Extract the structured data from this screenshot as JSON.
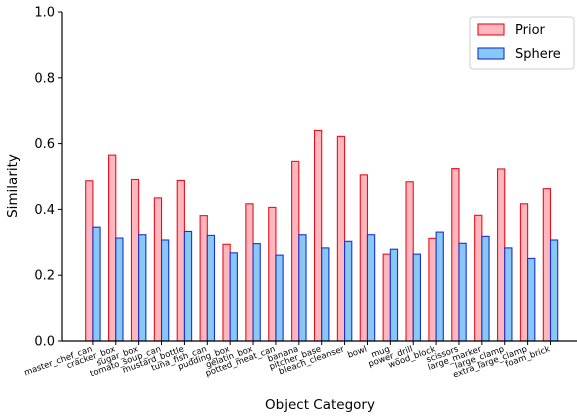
{
  "chart_data": {
    "type": "bar",
    "title": "",
    "xlabel": "Object Category",
    "ylabel": "Similarity",
    "ylim": [
      0.0,
      1.0
    ],
    "yticks": [
      "0.0",
      "0.2",
      "0.4",
      "0.6",
      "0.8",
      "1.0"
    ],
    "grid": false,
    "legend_position": "top-right",
    "categories": [
      "master_chef_can",
      "cracker_box",
      "sugar_box",
      "tomato_soup_can",
      "mustard_bottle",
      "tuna_fish_can",
      "pudding_box",
      "gelatin_box",
      "potted_meat_can",
      "banana",
      "pitcher_base",
      "bleach_cleanser",
      "bowl",
      "mug",
      "power_drill",
      "wood_block",
      "scissors",
      "large_marker",
      "large_clamp",
      "extra_large_clamp",
      "foam_brick"
    ],
    "series": [
      {
        "name": "Prior",
        "fill": "#ffb6bd",
        "edge": "#e8101e",
        "values": [
          0.487,
          0.565,
          0.491,
          0.435,
          0.488,
          0.381,
          0.294,
          0.417,
          0.406,
          0.546,
          0.64,
          0.622,
          0.505,
          0.264,
          0.484,
          0.312,
          0.524,
          0.382,
          0.523,
          0.417,
          0.463
        ]
      },
      {
        "name": "Sphere",
        "fill": "#88c8f4",
        "edge": "#1a2fd6",
        "values": [
          0.346,
          0.313,
          0.323,
          0.307,
          0.333,
          0.321,
          0.268,
          0.296,
          0.261,
          0.323,
          0.283,
          0.303,
          0.323,
          0.279,
          0.264,
          0.331,
          0.297,
          0.318,
          0.283,
          0.251,
          0.307
        ]
      }
    ]
  }
}
